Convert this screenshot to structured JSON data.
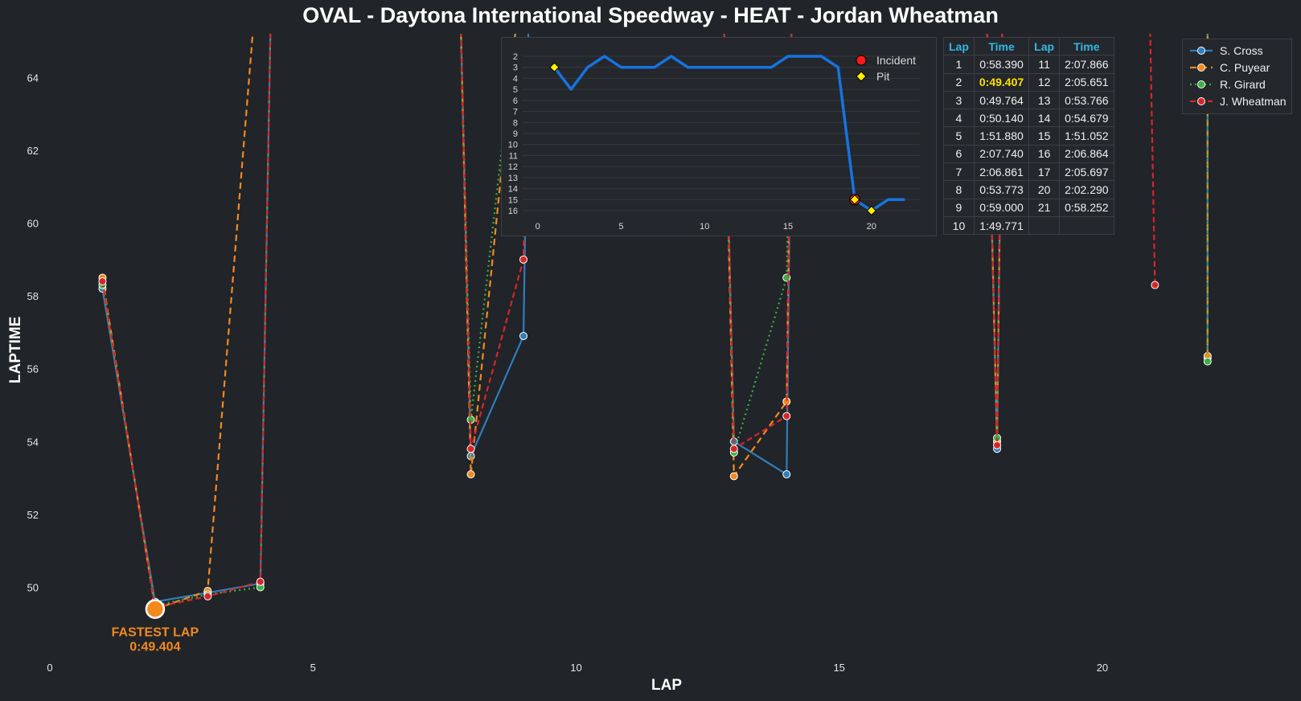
{
  "chart_data": {
    "type": "line",
    "title": "OVAL - Daytona International Speedway - HEAT - Jordan Wheatman",
    "xlabel": "LAP",
    "ylabel": "LAPTIME",
    "xlim": [
      0,
      23.5
    ],
    "ylim": [
      48.2,
      65.2
    ],
    "xticks": [
      0,
      5,
      10,
      15,
      20
    ],
    "yticks": [
      50,
      52,
      54,
      56,
      58,
      60,
      62,
      64
    ],
    "grid": false,
    "legend_position": "top-right",
    "series": [
      {
        "name": "S. Cross",
        "color": "#2f7ebc",
        "dash": "",
        "points": [
          [
            1,
            58.2
          ],
          [
            2,
            49.6
          ],
          [
            3,
            49.85
          ],
          [
            4,
            50.1
          ],
          [
            4.2,
            66
          ],
          null,
          [
            7.8,
            66
          ],
          [
            8,
            53.6
          ],
          [
            9,
            56.9
          ],
          [
            9.1,
            66
          ],
          null,
          [
            12.8,
            66
          ],
          [
            13,
            54.0
          ],
          [
            14,
            53.1
          ],
          [
            14.1,
            66
          ],
          null,
          [
            17.8,
            66
          ],
          [
            18,
            53.8
          ],
          [
            18.1,
            66
          ],
          null,
          [
            22,
            66
          ],
          [
            22,
            56.3
          ]
        ]
      },
      {
        "name": "C. Puyear",
        "color": "#f28a1e",
        "dash": "8,5",
        "points": [
          [
            1,
            58.5
          ],
          [
            2,
            49.4
          ],
          [
            3,
            49.9
          ],
          [
            3.9,
            66
          ],
          null,
          [
            7.8,
            66
          ],
          [
            8,
            53.1
          ],
          [
            8.9,
            66
          ],
          null,
          [
            12.8,
            66
          ],
          [
            13,
            53.05
          ],
          [
            14,
            55.1
          ],
          [
            14.1,
            66
          ],
          null,
          [
            17.8,
            66
          ],
          [
            18,
            54.0
          ],
          [
            18.1,
            66
          ],
          null,
          [
            22,
            66
          ],
          [
            22,
            56.35
          ]
        ]
      },
      {
        "name": "R. Girard",
        "color": "#3cb043",
        "dash": "2,4",
        "points": [
          [
            1,
            58.3
          ],
          [
            2,
            49.5
          ],
          [
            3,
            49.8
          ],
          [
            4,
            50.0
          ],
          [
            4.2,
            66
          ],
          null,
          [
            7.8,
            66
          ],
          [
            8,
            54.6
          ],
          [
            8.9,
            66
          ],
          null,
          [
            12.8,
            66
          ],
          [
            13,
            53.7
          ],
          [
            14,
            58.5
          ],
          [
            14.1,
            66
          ],
          null,
          [
            17.8,
            66
          ],
          [
            18,
            54.1
          ],
          [
            18.1,
            66
          ],
          null,
          [
            22,
            66
          ],
          [
            22,
            56.2
          ]
        ]
      },
      {
        "name": "J. Wheatman",
        "color": "#d62728",
        "dash": "7,4",
        "points": [
          [
            1,
            58.4
          ],
          [
            2,
            49.45
          ],
          [
            3,
            49.75
          ],
          [
            4,
            50.15
          ],
          [
            4.2,
            66
          ],
          null,
          [
            7.8,
            66
          ],
          [
            8,
            53.8
          ],
          [
            9,
            59.0
          ],
          [
            9.1,
            66
          ],
          null,
          [
            12.8,
            66
          ],
          [
            13,
            53.8
          ],
          [
            14,
            54.7
          ],
          [
            14.1,
            66
          ],
          null,
          [
            17.8,
            66
          ],
          [
            18,
            53.9
          ],
          [
            18.1,
            66
          ],
          null,
          [
            20.9,
            66
          ],
          [
            21,
            58.3
          ]
        ]
      }
    ],
    "fastest_lap": {
      "label": "FASTEST LAP",
      "time": "0:49.404",
      "lap": 2,
      "value": 49.4,
      "color": "#f28a1e"
    },
    "position_chart": {
      "line_color": "#1673e0",
      "xlim": [
        -0.9,
        22.9
      ],
      "ylim_inverted": [
        16.8,
        1.2
      ],
      "xticks": [
        0,
        5,
        10,
        15,
        20
      ],
      "yticks": [
        2,
        3,
        4,
        5,
        6,
        7,
        8,
        9,
        10,
        11,
        12,
        13,
        14,
        15,
        16
      ],
      "laps": [
        1,
        2,
        3,
        4,
        5,
        6,
        7,
        8,
        9,
        10,
        11,
        12,
        13,
        14,
        15,
        16,
        17,
        18,
        19,
        20,
        21,
        22
      ],
      "positions": [
        3,
        5,
        3,
        2,
        3,
        3,
        3,
        2,
        3,
        3,
        3,
        3,
        3,
        3,
        2,
        2,
        2,
        3,
        15,
        16,
        15,
        15
      ],
      "incident": {
        "label": "Incident",
        "laps": [
          19
        ],
        "positions": [
          15
        ],
        "color": "#ff1a1a"
      },
      "pit": {
        "label": "Pit",
        "laps": [
          1,
          19,
          20
        ],
        "positions": [
          3,
          15,
          16
        ],
        "color": "#ffee00"
      }
    },
    "laps_table": {
      "headers": [
        "Lap",
        "Time",
        "Lap",
        "Time"
      ],
      "rows": [
        [
          "1",
          "0:58.390",
          "11",
          "2:07.866"
        ],
        [
          "2",
          "0:49.407",
          "12",
          "2:05.651"
        ],
        [
          "3",
          "0:49.764",
          "13",
          "0:53.766"
        ],
        [
          "4",
          "0:50.140",
          "14",
          "0:54.679"
        ],
        [
          "5",
          "1:51.880",
          "15",
          "1:51.052"
        ],
        [
          "6",
          "2:07.740",
          "16",
          "2:06.864"
        ],
        [
          "7",
          "2:06.861",
          "17",
          "2:05.697"
        ],
        [
          "8",
          "0:53.773",
          "20",
          "2:02.290"
        ],
        [
          "9",
          "0:59.000",
          "21",
          "0:58.252"
        ],
        [
          "10",
          "1:49.771",
          "",
          ""
        ]
      ],
      "best_time": "0:49.407"
    }
  }
}
